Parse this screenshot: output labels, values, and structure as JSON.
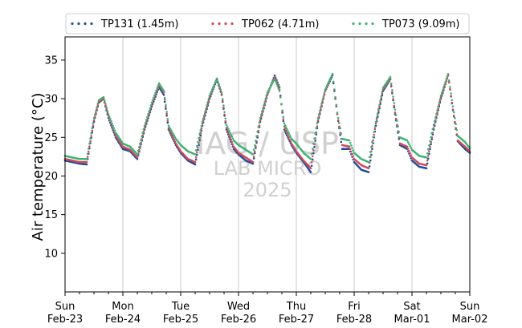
{
  "watermark": {
    "line1": "IAG / USP",
    "line2": "LAB MICRO",
    "line3": "2025"
  },
  "chart_data": {
    "type": "scatter",
    "ylabel": "Air temperature (°C)",
    "xlabel": "",
    "x_unit": "days",
    "xlim": [
      "2025-02-23 00:00",
      "2025-03-02 00:00"
    ],
    "ylim": [
      5,
      38
    ],
    "yticks": [
      10,
      15,
      20,
      25,
      30,
      35
    ],
    "xticks": [
      {
        "day": "Sun",
        "date": "Feb-23"
      },
      {
        "day": "Mon",
        "date": "Feb-24"
      },
      {
        "day": "Tue",
        "date": "Feb-25"
      },
      {
        "day": "Wed",
        "date": "Feb-26"
      },
      {
        "day": "Thu",
        "date": "Feb-27"
      },
      {
        "day": "Fri",
        "date": "Feb-28"
      },
      {
        "day": "Sat",
        "date": "Mar-01"
      },
      {
        "day": "Sun",
        "date": "Mar-02"
      }
    ],
    "grid": "vertical-at-day-boundaries",
    "legend_position": "top",
    "series": [
      {
        "name": "TP131 (1.45m)",
        "color": "#1f4e99",
        "x": [
          "2025-02-23 00:00",
          "2025-02-23 03:00",
          "2025-02-23 06:00",
          "2025-02-23 09:00",
          "2025-02-23 12:00",
          "2025-02-23 14:00",
          "2025-02-23 16:00",
          "2025-02-23 18:00",
          "2025-02-23 21:00",
          "2025-02-24 00:00",
          "2025-02-24 03:00",
          "2025-02-24 06:00",
          "2025-02-24 09:00",
          "2025-02-24 12:00",
          "2025-02-24 15:00",
          "2025-02-24 17:00",
          "2025-02-24 19:00",
          "2025-02-24 22:00",
          "2025-02-25 00:00",
          "2025-02-25 03:00",
          "2025-02-25 06:00",
          "2025-02-25 09:00",
          "2025-02-25 12:00",
          "2025-02-25 15:00",
          "2025-02-25 17:00",
          "2025-02-25 19:00",
          "2025-02-25 22:00",
          "2025-02-26 00:00",
          "2025-02-26 03:00",
          "2025-02-26 06:00",
          "2025-02-26 09:00",
          "2025-02-26 12:00",
          "2025-02-26 15:00",
          "2025-02-26 17:00",
          "2025-02-26 19:00",
          "2025-02-26 22:00",
          "2025-02-27 00:00",
          "2025-02-27 03:00",
          "2025-02-27 06:00",
          "2025-02-27 09:00",
          "2025-02-27 12:00",
          "2025-02-27 15:00",
          "2025-02-27 17:00",
          "2025-02-27 19:00",
          "2025-02-27 22:00",
          "2025-02-28 00:00",
          "2025-02-28 03:00",
          "2025-02-28 06:00",
          "2025-02-28 09:00",
          "2025-02-28 12:00",
          "2025-02-28 15:00",
          "2025-02-28 17:00",
          "2025-02-28 19:00",
          "2025-02-28 22:00",
          "2025-03-01 00:00",
          "2025-03-01 03:00",
          "2025-03-01 06:00",
          "2025-03-01 09:00",
          "2025-03-01 12:00",
          "2025-03-01 15:00",
          "2025-03-01 17:00",
          "2025-03-01 19:00",
          "2025-03-01 22:00",
          "2025-03-02 00:00"
        ],
        "y": [
          22.0,
          21.8,
          21.6,
          21.5,
          27.0,
          29.5,
          30.0,
          27.5,
          25.0,
          23.5,
          23.2,
          22.2,
          26.0,
          29.0,
          31.5,
          30.5,
          26.0,
          24.0,
          23.0,
          22.0,
          21.5,
          26.5,
          30.0,
          32.5,
          30.5,
          26.0,
          23.5,
          22.8,
          22.0,
          21.6,
          27.0,
          30.5,
          33.0,
          31.5,
          26.0,
          24.0,
          23.0,
          21.8,
          20.5,
          27.0,
          31.0,
          33.0,
          28.0,
          23.5,
          23.5,
          21.8,
          20.8,
          20.5,
          26.5,
          31.0,
          32.5,
          28.0,
          24.0,
          23.5,
          22.0,
          21.2,
          21.0,
          26.0,
          30.0,
          33.0,
          28.5,
          24.5,
          23.5,
          23.0
        ]
      },
      {
        "name": "TP062 (4.71m)",
        "color": "#d04a5a",
        "x": [
          "2025-02-23 00:00",
          "2025-02-23 03:00",
          "2025-02-23 06:00",
          "2025-02-23 09:00",
          "2025-02-23 12:00",
          "2025-02-23 14:00",
          "2025-02-23 16:00",
          "2025-02-23 18:00",
          "2025-02-23 21:00",
          "2025-02-24 00:00",
          "2025-02-24 03:00",
          "2025-02-24 06:00",
          "2025-02-24 09:00",
          "2025-02-24 12:00",
          "2025-02-24 15:00",
          "2025-02-24 17:00",
          "2025-02-24 19:00",
          "2025-02-24 22:00",
          "2025-02-25 00:00",
          "2025-02-25 03:00",
          "2025-02-25 06:00",
          "2025-02-25 09:00",
          "2025-02-25 12:00",
          "2025-02-25 15:00",
          "2025-02-25 17:00",
          "2025-02-25 19:00",
          "2025-02-25 22:00",
          "2025-02-26 00:00",
          "2025-02-26 03:00",
          "2025-02-26 06:00",
          "2025-02-26 09:00",
          "2025-02-26 12:00",
          "2025-02-26 15:00",
          "2025-02-26 17:00",
          "2025-02-26 19:00",
          "2025-02-26 22:00",
          "2025-02-27 00:00",
          "2025-02-27 03:00",
          "2025-02-27 06:00",
          "2025-02-27 09:00",
          "2025-02-27 12:00",
          "2025-02-27 15:00",
          "2025-02-27 17:00",
          "2025-02-27 19:00",
          "2025-02-27 22:00",
          "2025-02-28 00:00",
          "2025-02-28 03:00",
          "2025-02-28 06:00",
          "2025-02-28 09:00",
          "2025-02-28 12:00",
          "2025-02-28 15:00",
          "2025-02-28 17:00",
          "2025-02-28 19:00",
          "2025-02-28 22:00",
          "2025-03-01 00:00",
          "2025-03-01 03:00",
          "2025-03-01 06:00",
          "2025-03-01 09:00",
          "2025-03-01 12:00",
          "2025-03-01 15:00",
          "2025-03-01 17:00",
          "2025-03-01 19:00",
          "2025-03-01 22:00",
          "2025-03-02 00:00"
        ],
        "y": [
          22.2,
          22.0,
          21.8,
          21.8,
          27.2,
          29.6,
          30.0,
          27.8,
          25.2,
          23.8,
          23.4,
          22.4,
          26.2,
          29.2,
          31.8,
          30.8,
          26.2,
          24.2,
          23.2,
          22.2,
          21.8,
          26.8,
          30.2,
          32.6,
          30.6,
          26.2,
          23.8,
          23.0,
          22.4,
          21.8,
          27.2,
          30.6,
          32.8,
          31.2,
          26.4,
          24.2,
          23.2,
          22.0,
          21.0,
          27.2,
          31.0,
          33.2,
          28.0,
          24.0,
          23.8,
          22.2,
          21.4,
          21.0,
          26.8,
          31.2,
          32.6,
          28.2,
          24.2,
          23.8,
          22.4,
          21.6,
          21.4,
          26.2,
          30.2,
          33.0,
          28.6,
          24.6,
          23.8,
          23.2
        ]
      },
      {
        "name": "TP073 (9.09m)",
        "color": "#3cb371",
        "x": [
          "2025-02-23 00:00",
          "2025-02-23 03:00",
          "2025-02-23 06:00",
          "2025-02-23 09:00",
          "2025-02-23 12:00",
          "2025-02-23 14:00",
          "2025-02-23 16:00",
          "2025-02-23 18:00",
          "2025-02-23 21:00",
          "2025-02-24 00:00",
          "2025-02-24 03:00",
          "2025-02-24 06:00",
          "2025-02-24 09:00",
          "2025-02-24 12:00",
          "2025-02-24 15:00",
          "2025-02-24 17:00",
          "2025-02-24 19:00",
          "2025-02-24 22:00",
          "2025-02-25 00:00",
          "2025-02-25 03:00",
          "2025-02-25 06:00",
          "2025-02-25 09:00",
          "2025-02-25 12:00",
          "2025-02-25 15:00",
          "2025-02-25 17:00",
          "2025-02-25 19:00",
          "2025-02-25 22:00",
          "2025-02-26 00:00",
          "2025-02-26 03:00",
          "2025-02-26 06:00",
          "2025-02-26 09:00",
          "2025-02-26 12:00",
          "2025-02-26 15:00",
          "2025-02-26 17:00",
          "2025-02-26 19:00",
          "2025-02-26 22:00",
          "2025-02-27 00:00",
          "2025-02-27 03:00",
          "2025-02-27 06:00",
          "2025-02-27 09:00",
          "2025-02-27 12:00",
          "2025-02-27 15:00",
          "2025-02-27 17:00",
          "2025-02-27 19:00",
          "2025-02-27 22:00",
          "2025-02-28 00:00",
          "2025-02-28 03:00",
          "2025-02-28 06:00",
          "2025-02-28 09:00",
          "2025-02-28 12:00",
          "2025-02-28 15:00",
          "2025-02-28 17:00",
          "2025-02-28 19:00",
          "2025-02-28 22:00",
          "2025-03-01 00:00",
          "2025-03-01 03:00",
          "2025-03-01 06:00",
          "2025-03-01 09:00",
          "2025-03-01 12:00",
          "2025-03-01 15:00",
          "2025-03-01 17:00",
          "2025-03-01 19:00",
          "2025-03-01 22:00",
          "2025-03-02 00:00"
        ],
        "y": [
          22.6,
          22.4,
          22.2,
          22.2,
          27.5,
          29.8,
          30.2,
          28.0,
          25.6,
          24.2,
          23.8,
          22.8,
          26.5,
          29.5,
          32.0,
          31.0,
          26.5,
          24.8,
          24.0,
          23.2,
          22.8,
          27.0,
          30.4,
          32.6,
          30.8,
          26.6,
          24.6,
          24.0,
          23.4,
          22.8,
          27.5,
          30.8,
          32.6,
          31.0,
          26.8,
          24.8,
          24.2,
          23.0,
          22.2,
          27.5,
          31.2,
          33.2,
          28.2,
          24.8,
          24.6,
          23.0,
          22.2,
          21.8,
          27.0,
          31.4,
          32.8,
          28.6,
          25.0,
          24.6,
          23.4,
          22.6,
          22.4,
          26.6,
          30.4,
          33.2,
          29.0,
          25.2,
          24.4,
          23.6
        ]
      }
    ]
  }
}
